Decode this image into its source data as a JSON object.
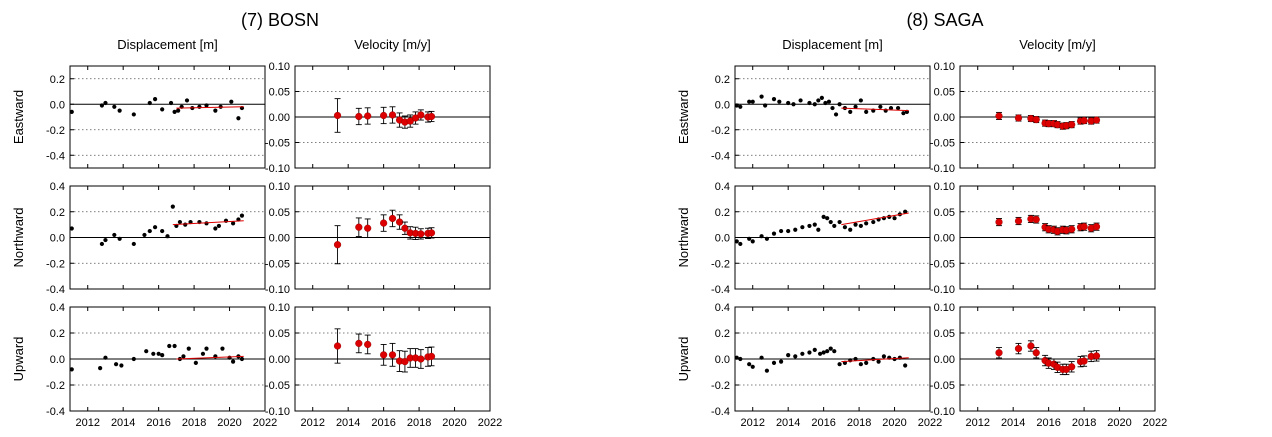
{
  "chart_data": [
    {
      "type": "scatter",
      "station": "(7) BOSN",
      "columns": [
        "Displacement [m]",
        "Velocity [m/y]"
      ],
      "rows": [
        "Eastward",
        "Northward",
        "Upward"
      ],
      "x_ticks": [
        "2012",
        "2014",
        "2016",
        "2018",
        "2020",
        "2022"
      ],
      "xlim": [
        2011,
        2022
      ],
      "grid": "horizontal dotted",
      "colors": {
        "points": "#000000",
        "velocity": "#dd0000",
        "errorbar": "#000000",
        "trend": "#dd0000"
      },
      "displacement": {
        "Eastward": {
          "ylim": [
            -0.5,
            0.3
          ],
          "yticks": [
            0.2,
            0.0,
            -0.2,
            -0.4
          ],
          "tick_labels": [
            "0.2",
            "0.0",
            "-0.2",
            "-0.4"
          ],
          "x": [
            2011.1,
            2012.8,
            2013.0,
            2013.5,
            2013.8,
            2014.6,
            2015.5,
            2015.8,
            2016.2,
            2016.7,
            2016.9,
            2017.1,
            2017.3,
            2017.6,
            2017.9,
            2018.3,
            2018.7,
            2019.2,
            2019.5,
            2020.1,
            2020.5,
            2020.7
          ],
          "y": [
            -0.06,
            -0.01,
            0.01,
            -0.02,
            -0.05,
            -0.08,
            0.01,
            0.04,
            -0.04,
            0.01,
            -0.06,
            -0.05,
            -0.02,
            0.03,
            -0.03,
            -0.02,
            -0.01,
            -0.05,
            -0.02,
            0.02,
            -0.11,
            -0.03
          ],
          "trend": {
            "x": [
              2017.0,
              2020.8
            ],
            "y": [
              -0.03,
              -0.02
            ]
          }
        },
        "Northward": {
          "ylim": [
            -0.4,
            0.4
          ],
          "yticks": [
            0.4,
            0.2,
            0.0,
            -0.2,
            -0.4
          ],
          "tick_labels": [
            "0.4",
            "0.2",
            "0.0",
            "-0.2",
            "-0.4"
          ],
          "x": [
            2011.1,
            2012.8,
            2013.0,
            2013.5,
            2013.8,
            2014.6,
            2015.2,
            2015.5,
            2015.8,
            2016.2,
            2016.5,
            2016.8,
            2017.0,
            2017.2,
            2017.5,
            2017.8,
            2018.3,
            2018.7,
            2019.2,
            2019.4,
            2019.8,
            2020.2,
            2020.5,
            2020.7
          ],
          "y": [
            0.07,
            -0.05,
            -0.02,
            0.02,
            -0.01,
            -0.05,
            0.02,
            0.05,
            0.08,
            0.05,
            0.01,
            0.24,
            0.09,
            0.12,
            0.1,
            0.12,
            0.12,
            0.11,
            0.07,
            0.09,
            0.13,
            0.11,
            0.14,
            0.17
          ],
          "trend": {
            "x": [
              2016.8,
              2020.8
            ],
            "y": [
              0.1,
              0.13
            ]
          }
        },
        "Upward": {
          "ylim": [
            -0.4,
            0.4
          ],
          "yticks": [
            0.4,
            0.2,
            0.0,
            -0.2,
            -0.4
          ],
          "tick_labels": [
            "0.4",
            "0.2",
            "0.0",
            "-0.2",
            "-0.4"
          ],
          "x": [
            2011.1,
            2012.7,
            2013.0,
            2013.6,
            2013.9,
            2014.6,
            2015.3,
            2015.7,
            2016.0,
            2016.2,
            2016.6,
            2016.9,
            2017.2,
            2017.4,
            2017.7,
            2018.1,
            2018.5,
            2018.7,
            2019.2,
            2019.6,
            2020.0,
            2020.2,
            2020.5,
            2020.7
          ],
          "y": [
            -0.08,
            -0.07,
            0.01,
            -0.04,
            -0.05,
            0.0,
            0.06,
            0.04,
            0.04,
            0.03,
            0.1,
            0.1,
            0.0,
            0.02,
            0.08,
            -0.03,
            0.04,
            0.08,
            0.02,
            0.08,
            0.01,
            -0.02,
            0.02,
            0.0
          ],
          "trend": {
            "x": [
              2017.0,
              2020.8
            ],
            "y": [
              0.0,
              0.02
            ]
          }
        }
      },
      "velocity": {
        "ylim": [
          -0.1,
          0.1
        ],
        "yticks": [
          0.1,
          0.05,
          0.0,
          -0.05,
          -0.1
        ],
        "tick_labels": [
          "0.10",
          "0.05",
          "0.00",
          "-0.05",
          "-0.10"
        ],
        "Eastward": {
          "x": [
            2013.4,
            2014.6,
            2015.1,
            2016.0,
            2016.5,
            2016.9,
            2017.2,
            2017.5,
            2017.8,
            2018.1,
            2018.5,
            2018.7
          ],
          "y": [
            0.003,
            0.001,
            0.002,
            0.003,
            0.004,
            -0.006,
            -0.01,
            -0.008,
            -0.002,
            0.004,
            0.0,
            0.001
          ],
          "err": [
            0.033,
            0.016,
            0.016,
            0.016,
            0.016,
            0.014,
            0.012,
            0.012,
            0.012,
            0.01,
            0.01,
            0.01
          ]
        },
        "Northward": {
          "x": [
            2013.4,
            2014.6,
            2015.1,
            2016.0,
            2016.5,
            2016.9,
            2017.2,
            2017.5,
            2017.8,
            2018.1,
            2018.5,
            2018.7
          ],
          "y": [
            -0.014,
            0.02,
            0.018,
            0.028,
            0.037,
            0.03,
            0.018,
            0.009,
            0.008,
            0.007,
            0.008,
            0.009
          ],
          "err": [
            0.037,
            0.018,
            0.018,
            0.016,
            0.016,
            0.014,
            0.012,
            0.012,
            0.012,
            0.01,
            0.01,
            0.01
          ]
        },
        "Upward": {
          "x": [
            2013.4,
            2014.6,
            2015.1,
            2016.0,
            2016.5,
            2016.9,
            2017.2,
            2017.5,
            2017.8,
            2018.1,
            2018.5,
            2018.7
          ],
          "y": [
            0.025,
            0.03,
            0.028,
            0.008,
            0.008,
            -0.004,
            -0.005,
            0.002,
            0.002,
            0.0,
            0.004,
            0.005
          ],
          "err": [
            0.033,
            0.018,
            0.018,
            0.02,
            0.022,
            0.02,
            0.02,
            0.018,
            0.018,
            0.018,
            0.018,
            0.018
          ]
        }
      }
    },
    {
      "type": "scatter",
      "station": "(8) SAGA",
      "columns": [
        "Displacement [m]",
        "Velocity [m/y]"
      ],
      "rows": [
        "Eastward",
        "Northward",
        "Upward"
      ],
      "x_ticks": [
        "2012",
        "2014",
        "2016",
        "2018",
        "2020",
        "2022"
      ],
      "xlim": [
        2011,
        2022
      ],
      "grid": "horizontal dotted",
      "colors": {
        "points": "#000000",
        "velocity": "#dd0000",
        "errorbar": "#000000",
        "trend": "#dd0000"
      },
      "displacement": {
        "Eastward": {
          "ylim": [
            -0.5,
            0.3
          ],
          "yticks": [
            0.2,
            0.0,
            -0.2,
            -0.4
          ],
          "tick_labels": [
            "0.2",
            "0.0",
            "-0.2",
            "-0.4"
          ],
          "x": [
            2011.1,
            2011.3,
            2011.8,
            2012.0,
            2012.5,
            2012.7,
            2013.2,
            2013.5,
            2014.0,
            2014.3,
            2014.7,
            2015.2,
            2015.5,
            2015.7,
            2015.9,
            2016.1,
            2016.3,
            2016.5,
            2016.7,
            2016.9,
            2017.2,
            2017.5,
            2017.8,
            2018.1,
            2018.4,
            2018.8,
            2019.2,
            2019.5,
            2019.8,
            2020.2,
            2020.5,
            2020.7
          ],
          "y": [
            -0.01,
            -0.02,
            0.02,
            0.02,
            0.06,
            -0.01,
            0.04,
            0.02,
            0.01,
            0.0,
            0.03,
            0.01,
            0.0,
            0.03,
            0.05,
            0.01,
            0.02,
            -0.03,
            -0.08,
            0.0,
            -0.03,
            -0.06,
            -0.02,
            0.03,
            -0.06,
            -0.05,
            -0.02,
            -0.05,
            -0.03,
            -0.03,
            -0.07,
            -0.06
          ],
          "trend": {
            "x": [
              2017.0,
              2020.8
            ],
            "y": [
              -0.03,
              -0.05
            ]
          }
        },
        "Northward": {
          "ylim": [
            -0.4,
            0.4
          ],
          "yticks": [
            0.4,
            0.2,
            0.0,
            -0.2,
            -0.4
          ],
          "tick_labels": [
            "0.4",
            "0.2",
            "0.0",
            "-0.2",
            "-0.4"
          ],
          "x": [
            2011.1,
            2011.3,
            2011.8,
            2012.0,
            2012.5,
            2012.8,
            2013.2,
            2013.6,
            2014.0,
            2014.4,
            2014.8,
            2015.2,
            2015.5,
            2015.7,
            2016.0,
            2016.2,
            2016.4,
            2016.6,
            2016.9,
            2017.2,
            2017.5,
            2017.8,
            2018.1,
            2018.4,
            2018.8,
            2019.1,
            2019.4,
            2019.7,
            2020.0,
            2020.3,
            2020.6
          ],
          "y": [
            -0.03,
            -0.05,
            -0.01,
            -0.03,
            0.01,
            -0.01,
            0.03,
            0.05,
            0.05,
            0.06,
            0.08,
            0.09,
            0.1,
            0.06,
            0.16,
            0.15,
            0.12,
            0.09,
            0.12,
            0.08,
            0.06,
            0.1,
            0.09,
            0.11,
            0.12,
            0.14,
            0.15,
            0.16,
            0.15,
            0.18,
            0.2
          ],
          "trend": {
            "x": [
              2017.0,
              2020.8
            ],
            "y": [
              0.1,
              0.19
            ]
          }
        },
        "Upward": {
          "ylim": [
            -0.4,
            0.4
          ],
          "yticks": [
            0.4,
            0.2,
            0.0,
            -0.2,
            -0.4
          ],
          "tick_labels": [
            "0.4",
            "0.2",
            "0.0",
            "-0.2",
            "-0.4"
          ],
          "x": [
            2011.1,
            2011.3,
            2011.8,
            2012.0,
            2012.5,
            2012.8,
            2013.2,
            2013.6,
            2014.0,
            2014.4,
            2014.8,
            2015.2,
            2015.5,
            2015.8,
            2016.0,
            2016.2,
            2016.4,
            2016.6,
            2016.9,
            2017.2,
            2017.5,
            2017.8,
            2018.1,
            2018.4,
            2018.8,
            2019.1,
            2019.4,
            2019.7,
            2020.0,
            2020.3,
            2020.6
          ],
          "y": [
            0.01,
            0.0,
            -0.04,
            -0.06,
            0.01,
            -0.09,
            -0.03,
            -0.02,
            0.03,
            0.02,
            0.04,
            0.05,
            0.07,
            0.04,
            0.05,
            0.06,
            0.08,
            0.06,
            -0.04,
            -0.03,
            -0.01,
            0.0,
            -0.04,
            -0.03,
            0.0,
            -0.02,
            0.02,
            0.01,
            0.0,
            0.01,
            -0.05
          ],
          "trend": {
            "x": [
              2017.0,
              2020.8
            ],
            "y": [
              -0.02,
              0.01
            ]
          }
        }
      },
      "velocity": {
        "ylim": [
          -0.1,
          0.1
        ],
        "yticks": [
          0.1,
          0.05,
          0.0,
          -0.05,
          -0.1
        ],
        "tick_labels": [
          "0.10",
          "0.05",
          "0.00",
          "-0.05",
          "-0.10"
        ],
        "Eastward": {
          "x": [
            2013.2,
            2014.3,
            2015.0,
            2015.3,
            2015.8,
            2016.0,
            2016.3,
            2016.5,
            2016.8,
            2017.0,
            2017.3,
            2017.8,
            2018.0,
            2018.4,
            2018.7
          ],
          "y": [
            0.002,
            -0.002,
            -0.003,
            -0.005,
            -0.012,
            -0.013,
            -0.013,
            -0.015,
            -0.018,
            -0.017,
            -0.015,
            -0.008,
            -0.007,
            -0.008,
            -0.006
          ],
          "err": [
            0.007,
            0.006,
            0.006,
            0.006,
            0.006,
            0.006,
            0.006,
            0.006,
            0.006,
            0.006,
            0.006,
            0.006,
            0.006,
            0.006,
            0.006
          ]
        },
        "Northward": {
          "x": [
            2013.2,
            2014.3,
            2015.0,
            2015.3,
            2015.8,
            2016.0,
            2016.3,
            2016.5,
            2016.8,
            2017.0,
            2017.3,
            2017.8,
            2018.0,
            2018.4,
            2018.7
          ],
          "y": [
            0.03,
            0.032,
            0.036,
            0.035,
            0.02,
            0.016,
            0.015,
            0.012,
            0.015,
            0.014,
            0.016,
            0.02,
            0.021,
            0.018,
            0.021
          ],
          "err": [
            0.007,
            0.007,
            0.007,
            0.007,
            0.007,
            0.007,
            0.007,
            0.007,
            0.007,
            0.007,
            0.007,
            0.007,
            0.007,
            0.007,
            0.007
          ]
        },
        "Upward": {
          "x": [
            2013.2,
            2014.3,
            2015.0,
            2015.3,
            2015.8,
            2016.0,
            2016.3,
            2016.5,
            2016.8,
            2017.0,
            2017.3,
            2017.8,
            2018.0,
            2018.4,
            2018.7
          ],
          "y": [
            0.012,
            0.02,
            0.025,
            0.012,
            -0.003,
            -0.008,
            -0.01,
            -0.016,
            -0.02,
            -0.02,
            -0.015,
            -0.005,
            -0.004,
            0.005,
            0.006
          ],
          "err": [
            0.01,
            0.01,
            0.01,
            0.01,
            0.01,
            0.01,
            0.01,
            0.01,
            0.01,
            0.01,
            0.01,
            0.01,
            0.01,
            0.01,
            0.01
          ]
        }
      }
    }
  ]
}
